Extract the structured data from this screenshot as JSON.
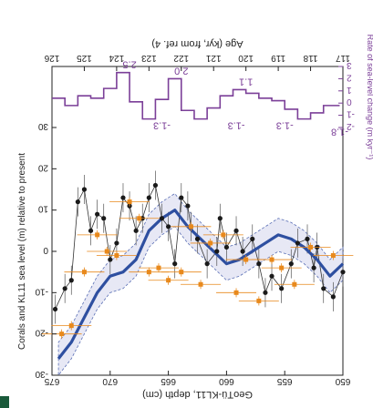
{
  "chart_data": {
    "type": "line",
    "orientation": "rotated 180 degrees (text printed upside down)",
    "top_axis": {
      "label": "GeoTü-KL11, depth (cm)",
      "ticks": [
        "650",
        "655",
        "660",
        "665",
        "670",
        "675"
      ],
      "range": [
        650,
        675
      ]
    },
    "bottom_axis": {
      "label": "Age (kyr, from ref. 4)",
      "ticks": [
        "117",
        "118",
        "119",
        "120",
        "121",
        "122",
        "123",
        "124",
        "125",
        "126"
      ],
      "range": [
        117,
        126
      ]
    },
    "left_axis": {
      "label": "Corals and KL11 sea level (m) relative to present",
      "ticks": [
        "-30",
        "-20",
        "-10",
        "0",
        "10",
        "20",
        "30"
      ],
      "range": [
        -30,
        30
      ]
    },
    "right_axis": {
      "label": "Rate of sea-level change (m kyr⁻¹)",
      "ticks": [
        "-2",
        "-1",
        "0",
        "1",
        "2",
        "3"
      ],
      "range": [
        -2,
        3
      ]
    },
    "series": [
      {
        "kind": "kl11-sea-level-points",
        "color": "#1a1a1a",
        "x": [
          117.0,
          117.3,
          117.6,
          117.8,
          117.9,
          118.1,
          118.4,
          118.6,
          118.9,
          119.2,
          119.4,
          119.6,
          119.8,
          120.1,
          120.3,
          120.6,
          120.8,
          120.9,
          121.2,
          121.5,
          121.7,
          121.8,
          122.0,
          122.2,
          122.4,
          122.6,
          122.8,
          123.0,
          123.2,
          123.4,
          123.6,
          123.8,
          124.0,
          124.2,
          124.4,
          124.6,
          124.8,
          125.0,
          125.2,
          125.4,
          125.6,
          125.9
        ],
        "y": [
          -5,
          -11,
          -9,
          1,
          -4,
          3,
          2,
          -3,
          -9,
          -6,
          -10,
          -3,
          3,
          0,
          5,
          1,
          8,
          0,
          -3,
          3,
          6,
          11,
          13,
          -3,
          6,
          8,
          16,
          13,
          8,
          5,
          11,
          13,
          2,
          -2,
          8,
          9,
          5,
          15,
          12,
          -7,
          -9,
          -14
        ]
      },
      {
        "kind": "kl11-smoothed-sea-level",
        "color": "#2e4fa0",
        "x": [
          117.0,
          117.4,
          117.8,
          118.2,
          118.6,
          119.0,
          119.4,
          119.8,
          120.2,
          120.6,
          121.0,
          121.4,
          121.8,
          122.2,
          122.6,
          123.0,
          123.4,
          123.8,
          124.2,
          124.6,
          125.0,
          125.4,
          125.8
        ],
        "y": [
          -3,
          -6,
          -2,
          1,
          3,
          4,
          2,
          0,
          -2,
          -3,
          0,
          3,
          6,
          10,
          8,
          5,
          -2,
          -5,
          -6,
          -10,
          -16,
          -22,
          -26
        ]
      },
      {
        "kind": "coral-sea-level-points",
        "color": "#e8891c",
        "x": [
          117.3,
          118.0,
          118.5,
          118.9,
          119.2,
          119.6,
          120.0,
          120.3,
          120.7,
          121.1,
          121.4,
          121.7,
          122.0,
          122.4,
          122.7,
          123.0,
          123.3,
          123.6,
          124.0,
          124.3,
          124.6,
          125.0,
          125.4,
          125.7
        ],
        "y": [
          -1,
          1,
          -8,
          -4,
          -2,
          -12,
          -2,
          -10,
          4,
          2,
          -8,
          6,
          -5,
          -7,
          -4,
          -5,
          8,
          12,
          -1,
          0,
          4,
          -5,
          -18,
          -20
        ]
      },
      {
        "kind": "rate-of-sea-level-change",
        "color": "#7b3f98",
        "x": [
          117.1,
          117.6,
          118.0,
          118.4,
          118.8,
          119.2,
          119.6,
          120.0,
          120.4,
          120.8,
          121.2,
          121.6,
          122.0,
          122.4,
          122.8,
          123.2,
          123.6,
          124.0,
          124.4,
          124.8,
          125.2,
          125.6
        ],
        "y": [
          -0.2,
          -0.8,
          -1.3,
          -0.5,
          0.2,
          0.4,
          0.8,
          1.1,
          0.6,
          -0.4,
          -1.3,
          -0.6,
          2.0,
          0.3,
          -1.3,
          0.1,
          2.5,
          1.2,
          0.4,
          0.6,
          -0.2,
          0.4
        ]
      }
    ],
    "annotations": [
      "-1.8",
      "-1.3",
      "-1.3",
      "-1.3",
      "1.1",
      "2.0",
      "2.5"
    ],
    "grid": false,
    "legend": "none"
  }
}
